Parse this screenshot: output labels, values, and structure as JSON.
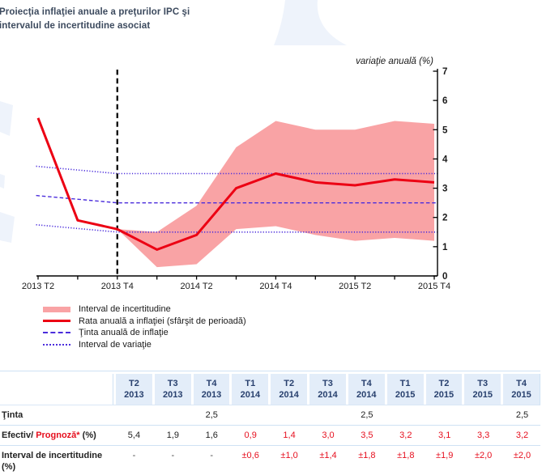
{
  "title": {
    "line1": "Proiecţia inflaţiei anuale a preţurilor IPC şi",
    "line2": "intervalul de incertitudine asociat"
  },
  "colors": {
    "uncertainty_band": "#f9a3a5",
    "inflation_line": "#ec0013",
    "target_and_variation_lines": "#4b2ddc",
    "forecast_divider": "#111111",
    "table_header_bg": "#e3edf9",
    "table_header_text": "#28406e",
    "table_border": "#cfe2f4",
    "forecast_value_text": "#e60f1e",
    "title_text": "#3c4a5e",
    "watermark": "#eef3fb"
  },
  "chart_data": {
    "type": "line",
    "title": "Proiecţia inflaţiei anuale a preţurilor IPC şi intervalul de incertitudine asociat",
    "ylabel": "variaţie anuală (%)",
    "ylim": [
      0,
      7
    ],
    "yticks": [
      0,
      1,
      2,
      3,
      4,
      5,
      6,
      7
    ],
    "grid": false,
    "legend_position": "bottom-left",
    "x_categories": [
      "2013 T2",
      "2013 T3",
      "2013 T4",
      "2014 T1",
      "2014 T2",
      "2014 T3",
      "2014 T4",
      "2015 T1",
      "2015 T2",
      "2015 T3",
      "2015 T4"
    ],
    "x_tick_labels": [
      {
        "index": 0,
        "label": "2013 T2"
      },
      {
        "index": 2,
        "label": "2013 T4"
      },
      {
        "index": 4,
        "label": "2014 T2"
      },
      {
        "index": 6,
        "label": "2014 T4"
      },
      {
        "index": 8,
        "label": "2015 T2"
      },
      {
        "index": 10,
        "label": "2015 T4"
      }
    ],
    "forecast_start_index": 2,
    "series": [
      {
        "name": "Rata anuală a inflaţiei (sfârşit de perioadă)",
        "style": "solid",
        "values": [
          5.4,
          1.9,
          1.6,
          0.9,
          1.4,
          3.0,
          3.5,
          3.2,
          3.1,
          3.3,
          3.2
        ]
      },
      {
        "name": "Ţinta anuală de inflaţie",
        "style": "dashed",
        "points": [
          [
            -0.05,
            2.75
          ],
          [
            2,
            2.5
          ],
          [
            10.08,
            2.5
          ]
        ]
      },
      {
        "name": "Interval de variaţie (limita superioară)",
        "style": "dotted",
        "points": [
          [
            -0.05,
            3.75
          ],
          [
            2,
            3.5
          ],
          [
            10.08,
            3.5
          ]
        ]
      },
      {
        "name": "Interval de variaţie (limita inferioară)",
        "style": "dotted",
        "points": [
          [
            -0.05,
            1.75
          ],
          [
            2,
            1.5
          ],
          [
            10.08,
            1.5
          ]
        ]
      }
    ],
    "band": {
      "name": "Interval de incertitudine",
      "start_index": 2,
      "center": [
        1.6,
        0.9,
        1.4,
        3.0,
        3.5,
        3.2,
        3.1,
        3.3,
        3.2
      ],
      "half_width": [
        0.0,
        0.6,
        1.0,
        1.4,
        1.8,
        1.8,
        1.9,
        2.0,
        2.0
      ]
    }
  },
  "legend": {
    "items": [
      {
        "label": "Interval de incertitudine",
        "swatch": "band"
      },
      {
        "label": "Rata anuală a inflaţiei (sfârşit de perioadă)",
        "swatch": "line-red"
      },
      {
        "label": "Ţinta anuală de inflaţie",
        "swatch": "dashed"
      },
      {
        "label": "Interval de variaţie",
        "swatch": "dotted"
      }
    ]
  },
  "table": {
    "col_headers": [
      [
        "T2",
        "2013"
      ],
      [
        "T3",
        "2013"
      ],
      [
        "T4",
        "2013"
      ],
      [
        "T1",
        "2014"
      ],
      [
        "T2",
        "2014"
      ],
      [
        "T3",
        "2014"
      ],
      [
        "T4",
        "2014"
      ],
      [
        "T1",
        "2015"
      ],
      [
        "T2",
        "2015"
      ],
      [
        "T3",
        "2015"
      ],
      [
        "T4",
        "2015"
      ]
    ],
    "rows": [
      {
        "label_segments": [
          {
            "text": "Ţinta",
            "red": false
          }
        ],
        "label_line2": "",
        "values": [
          "",
          "",
          "2,5",
          "",
          "",
          "",
          "2,5",
          "",
          "",
          "",
          "2,5"
        ],
        "red_from": null
      },
      {
        "label_segments": [
          {
            "text": "Efectiv/ ",
            "red": false
          },
          {
            "text": "Prognoză*",
            "red": true
          },
          {
            "text": " (%)",
            "red": false
          }
        ],
        "label_line2": "",
        "values": [
          "5,4",
          "1,9",
          "1,6",
          "0,9",
          "1,4",
          "3,0",
          "3,5",
          "3,2",
          "3,1",
          "3,3",
          "3,2"
        ],
        "red_from": 3
      },
      {
        "label_segments": [
          {
            "text": "Interval de incertitudine",
            "red": false
          }
        ],
        "label_line2": "(%)",
        "values": [
          "-",
          "-",
          "-",
          "±0,6",
          "±1,0",
          "±1,4",
          "±1,8",
          "±1,8",
          "±1,9",
          "±2,0",
          "±2,0"
        ],
        "red_from": 3
      }
    ]
  }
}
